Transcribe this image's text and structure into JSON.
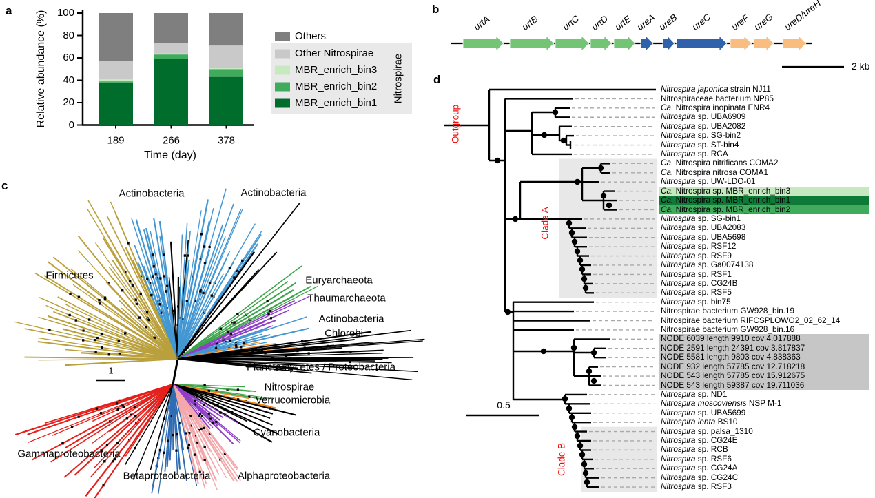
{
  "panels": {
    "a": "a",
    "b": "b",
    "c": "c",
    "d": "d"
  },
  "chart_data": {
    "type": "stacked-bar",
    "categories": [
      "189",
      "266",
      "378"
    ],
    "series": [
      {
        "name": "MBR_enrich_bin1",
        "color": "#006d2c",
        "values": [
          38,
          59,
          43
        ]
      },
      {
        "name": "MBR_enrich_bin2",
        "color": "#41ab5d",
        "values": [
          1,
          4,
          7
        ]
      },
      {
        "name": "MBR_enrich_bin3",
        "color": "#c7e9c0",
        "values": [
          2,
          1,
          1
        ]
      },
      {
        "name": "Other Nitrospirae",
        "color": "#c9c9c9",
        "values": [
          16,
          9,
          20
        ]
      },
      {
        "name": "Others",
        "color": "#7f7f7f",
        "values": [
          43,
          27,
          29
        ]
      }
    ],
    "stack_order_bottom_to_top": [
      "MBR_enrich_bin1",
      "MBR_enrich_bin2",
      "MBR_enrich_bin3",
      "Other Nitrospirae",
      "Others"
    ],
    "legend_order_top_to_bottom": [
      "Others",
      "Other Nitrospirae",
      "MBR_enrich_bin3",
      "MBR_enrich_bin2",
      "MBR_enrich_bin1"
    ],
    "legend_group_label": "Nitrospirae",
    "legend_box_color": "#e9e9e9",
    "xlabel": "Time (day)",
    "ylabel": "Relative abundance (%)",
    "yticks": [
      "0",
      "20",
      "40",
      "60",
      "80",
      "100"
    ],
    "ylim": [
      0,
      100
    ],
    "grid": false
  },
  "gene_map": {
    "genes": [
      {
        "name": "urtA",
        "color": "#74c476"
      },
      {
        "name": "urtB",
        "color": "#74c476"
      },
      {
        "name": "urtC",
        "color": "#74c476"
      },
      {
        "name": "urtD",
        "color": "#74c476"
      },
      {
        "name": "urtE",
        "color": "#74c476"
      },
      {
        "name": "ureA",
        "color": "#2f62ab"
      },
      {
        "name": "ureB",
        "color": "#2f62ab"
      },
      {
        "name": "ureC",
        "color": "#2f62ab"
      },
      {
        "name": "ureF",
        "color": "#f9bd80"
      },
      {
        "name": "ureG",
        "color": "#f9bd80"
      },
      {
        "name": "ureD/ureH",
        "color": "#f9bd80"
      }
    ],
    "scale_label": "2 kb"
  },
  "radial_tree": {
    "clade_labels": [
      "Actinobacteria",
      "Actinobacteria",
      "Firmicutes",
      "Euryarchaeota",
      "Thaumarchaeota",
      "Actinobacteria",
      "Chlorobi",
      "Planctomycetes / Proteobacteria",
      "Nitrospirae",
      "Verrucomicrobia",
      "Cyanobacteria",
      "Gammaproteobacteria",
      "Betaproteobacteria",
      "Alphaproteobacteria"
    ],
    "branch_colors": {
      "gold": "#b9a03c",
      "blue": "#4397d2",
      "green": "#3ea44b",
      "purple": "#8e3fc6",
      "orange": "#f2881d",
      "red": "#e5201b",
      "pink": "#f3a8ab",
      "dark_blue": "#2f6cb3",
      "black": "#000000"
    },
    "scale_label": "1"
  },
  "tree": {
    "outgroup_label": "Outgroup",
    "clade_a_label": "Clade A",
    "clade_b_label": "Clade B",
    "scale_label": "0.5",
    "label_color": "#f10a0a",
    "clade_box_color": "#e8e8e8",
    "highlight_colors": {
      "bin3": "#c7e9c0",
      "bin1": "#0e7a38",
      "bin2": "#41ab5d",
      "node": "#c6c6c6"
    },
    "taxa": [
      {
        "i": "Nitrospira japonica",
        "n": " strain NJ11",
        "hl": ""
      },
      {
        "i": "",
        "n": "Nitrospiraceae bacterium NP85",
        "hl": ""
      },
      {
        "i": "Ca.",
        "n": " Nitrospira inopinata ENR4",
        "hl": ""
      },
      {
        "i": "Nitrospira",
        "n": " sp. UBA6909",
        "hl": ""
      },
      {
        "i": "Nitrospira",
        "n": " sp. UBA2082",
        "hl": ""
      },
      {
        "i": "Nitrospira",
        "n": " sp. SG-bin2",
        "hl": ""
      },
      {
        "i": "Nitrospira",
        "n": " sp. ST-bin4",
        "hl": ""
      },
      {
        "i": "Nitrospira",
        "n": " sp. RCA",
        "hl": ""
      },
      {
        "i": "Ca.",
        "n": " Nitrospira nitrificans COMA2",
        "hl": ""
      },
      {
        "i": "Ca.",
        "n": " Nitrospira nitrosa COMA1",
        "hl": ""
      },
      {
        "i": "Nitrospira",
        "n": " sp. UW-LDO-01",
        "hl": ""
      },
      {
        "i": "Ca.",
        "n": " Nitrospira sp. MBR_enrich_bin3",
        "hl": "bin3"
      },
      {
        "i": "Ca.",
        "n": " Nitrospira sp. MBR_enrich_bin1",
        "hl": "bin1"
      },
      {
        "i": "Ca.",
        "n": " Nitrospira sp. MBR_enrich_bin2",
        "hl": "bin2"
      },
      {
        "i": "Nitrospira",
        "n": " sp. SG-bin1",
        "hl": ""
      },
      {
        "i": "Nitrospira",
        "n": " sp. UBA2083",
        "hl": ""
      },
      {
        "i": "Nitrospira",
        "n": " sp. UBA5698",
        "hl": ""
      },
      {
        "i": "Nitrospira",
        "n": " sp. RSF12",
        "hl": ""
      },
      {
        "i": "Nitrospira",
        "n": " sp. RSF9",
        "hl": ""
      },
      {
        "i": "Nitrospira",
        "n": " sp. Ga0074138",
        "hl": ""
      },
      {
        "i": "Nitrospira",
        "n": " sp. RSF1",
        "hl": ""
      },
      {
        "i": "Nitrospira",
        "n": " sp. CG24B",
        "hl": ""
      },
      {
        "i": "Nitrospira",
        "n": " sp. RSF5",
        "hl": ""
      },
      {
        "i": "Nitrospira",
        "n": " sp. bin75",
        "hl": ""
      },
      {
        "i": "",
        "n": "Nitrospirae bacterium GW928_bin.19",
        "hl": ""
      },
      {
        "i": "",
        "n": "Nitrospirae bacterium RIFCSPLOWO2_02_62_14",
        "hl": ""
      },
      {
        "i": "",
        "n": "Nitrospirae bacterium GW928_bin.16",
        "hl": ""
      },
      {
        "i": "",
        "n": "NODE 6039 length 9910 cov 4.017888",
        "hl": "node"
      },
      {
        "i": "",
        "n": "NODE 2591 length 24391 cov 3.817837",
        "hl": "node"
      },
      {
        "i": "",
        "n": "NODE 5581 length 9803 cov 4.838363",
        "hl": "node"
      },
      {
        "i": "",
        "n": "NODE 932 length 57785 cov 12.718218",
        "hl": "node"
      },
      {
        "i": "",
        "n": "NODE 543 length 57785 cov 15.912675",
        "hl": "node"
      },
      {
        "i": "",
        "n": "NODE 543 length 59387 cov 19.711036",
        "hl": "node"
      },
      {
        "i": "Nitrospira",
        "n": " sp. ND1",
        "hl": ""
      },
      {
        "i": "Nitrospira moscoviensis",
        "n": " NSP M-1",
        "hl": ""
      },
      {
        "i": "Nitrospira",
        "n": " sp. UBA5699",
        "hl": ""
      },
      {
        "i": "Nitrospira lenta",
        "n": " BS10",
        "hl": ""
      },
      {
        "i": "Nitrospira",
        "n": " sp. palsa_1310",
        "hl": ""
      },
      {
        "i": "Nitrospira",
        "n": " sp. CG24E",
        "hl": ""
      },
      {
        "i": "Nitrospira",
        "n": " sp. RCB",
        "hl": ""
      },
      {
        "i": "Nitrospira",
        "n": " sp. RSF6",
        "hl": ""
      },
      {
        "i": "Nitrospira",
        "n": " sp. CG24A",
        "hl": ""
      },
      {
        "i": "Nitrospira",
        "n": " sp. CG24C",
        "hl": ""
      },
      {
        "i": "Nitrospira",
        "n": " sp. RSF3",
        "hl": ""
      }
    ]
  }
}
